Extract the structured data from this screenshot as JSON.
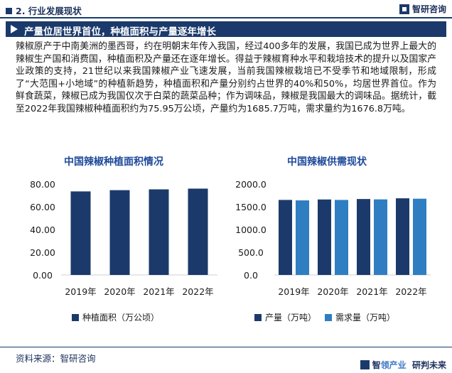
{
  "header": {
    "section": "2. 行业发展现状",
    "brand": "智研咨询"
  },
  "headline": "产量位居世界首位，种植面积与产量逐年增长",
  "paragraph": "辣椒原产于中南美洲的墨西哥，约在明朝末年传入我国，经过400多年的发展，我国已成为世界上最大的辣椒生产国和消费国，种植面积及产量还在逐年增长。得益于辣椒育种水平和栽培技术的提升以及国家产业政策的支持，21世纪以来我国辣椒产业飞速发展，当前我国辣椒栽培已不受季节和地域限制，形成了“大范围+小地域”的种植新趋势，种植面积和产量分别约占世界的40%和50%，均居世界首位。作为鲜食蔬菜，辣椒已成为我国仅次于白菜的蔬菜品种；作为调味品，辣椒是我国最大的调味品。据统计，截至2022年我国辣椒种植面积约为75.95万公顷，产量约为1685.7万吨，需求量约为1676.8万吨。",
  "colors": {
    "dark": "#1b3a6b",
    "accent": "#2e7ec1",
    "title": "#1e4a9a"
  },
  "chart_data": [
    {
      "type": "bar",
      "title": "中国辣椒种植面积情况",
      "categories": [
        "2019年",
        "2020年",
        "2021年",
        "2022年"
      ],
      "series": [
        {
          "name": "种植面积（万公顷）",
          "values": [
            73.5,
            74.6,
            75.3,
            75.95
          ],
          "color": "#1b3a6b"
        }
      ],
      "ylim": [
        0,
        80
      ],
      "yticks": [
        "0.00",
        "20.00",
        "40.00",
        "60.00",
        "80.00"
      ],
      "grid": false,
      "legend": "bottom"
    },
    {
      "type": "bar",
      "title": "中国辣椒供需现状",
      "categories": [
        "2019年",
        "2020年",
        "2021年",
        "2022年"
      ],
      "series": [
        {
          "name": "产量（万吨）",
          "values": [
            1650,
            1660,
            1670,
            1685.7
          ],
          "color": "#1b3a6b"
        },
        {
          "name": "需求量（万吨）",
          "values": [
            1640,
            1650,
            1662,
            1676.8
          ],
          "color": "#2e7ec1"
        }
      ],
      "ylim": [
        0,
        2000
      ],
      "yticks": [
        "0.0",
        "500.0",
        "1000.0",
        "1500.0",
        "2000.0"
      ],
      "grid": false,
      "legend": "bottom"
    }
  ],
  "footer": {
    "source": "资料来源：智研咨询",
    "brand_main": "智",
    "brand_left": "领产业",
    "brand_right": "研判未来"
  }
}
